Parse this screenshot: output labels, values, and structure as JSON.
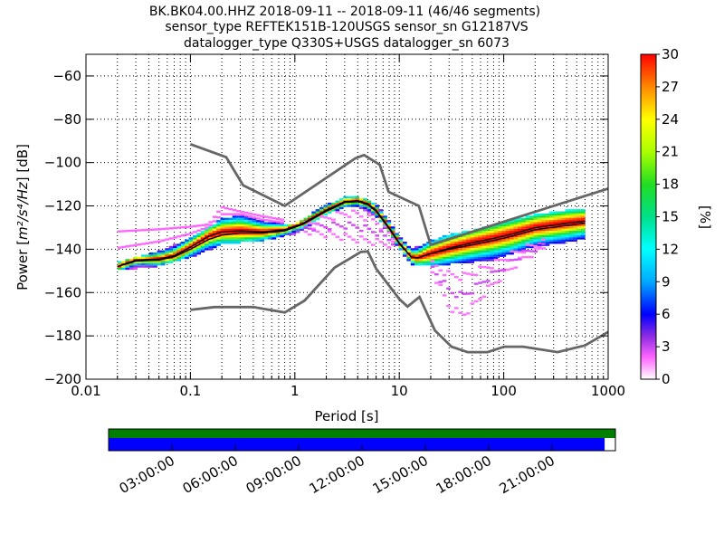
{
  "chart_data": {
    "type": "heatmap",
    "title_lines": [
      "BK.BK04.00.HHZ   2018-09-11 -- 2018-09-11  (46/46 segments)",
      "sensor_type REFTEK151B-120USGS sensor_sn G12187VS",
      "datalogger_type Q330S+USGS datalogger_sn 6073"
    ],
    "xlabel": "Period [s]",
    "ylabel_prefix": "Power [",
    "ylabel_units": "m²/s⁴/Hz",
    "ylabel_suffix": "] [dB]",
    "xscale": "log",
    "xlim": [
      0.01,
      1000
    ],
    "ylim": [
      -200,
      -50
    ],
    "xticks": [
      {
        "value": 0.01,
        "label": "0.01"
      },
      {
        "value": 0.1,
        "label": "0.1"
      },
      {
        "value": 1,
        "label": "1"
      },
      {
        "value": 10,
        "label": "10"
      },
      {
        "value": 100,
        "label": "100"
      },
      {
        "value": 1000,
        "label": "1000"
      }
    ],
    "yticks": [
      {
        "value": -60,
        "label": "−60"
      },
      {
        "value": -80,
        "label": "−80"
      },
      {
        "value": -100,
        "label": "−100"
      },
      {
        "value": -120,
        "label": "−120"
      },
      {
        "value": -140,
        "label": "−140"
      },
      {
        "value": -160,
        "label": "−160"
      },
      {
        "value": -180,
        "label": "−180"
      },
      {
        "value": -200,
        "label": "−200"
      }
    ],
    "grid": "dotted",
    "colorbar": {
      "label": "[%]",
      "range": [
        0,
        30
      ],
      "ticks": [
        {
          "value": 0,
          "label": "0"
        },
        {
          "value": 3,
          "label": "3"
        },
        {
          "value": 6,
          "label": "6"
        },
        {
          "value": 9,
          "label": "9"
        },
        {
          "value": 12,
          "label": "12"
        },
        {
          "value": 15,
          "label": "15"
        },
        {
          "value": 18,
          "label": "18"
        },
        {
          "value": 21,
          "label": "21"
        },
        {
          "value": 24,
          "label": "24"
        },
        {
          "value": 27,
          "label": "27"
        },
        {
          "value": 30,
          "label": "30"
        }
      ]
    },
    "new_high_noise_model": [
      [
        0.1,
        -91.5
      ],
      [
        0.22,
        -97.5
      ],
      [
        0.32,
        -110.5
      ],
      [
        0.8,
        -120
      ],
      [
        3.8,
        -98
      ],
      [
        4.6,
        -96.5
      ],
      [
        6.5,
        -101
      ],
      [
        7.9,
        -113.5
      ],
      [
        15.4,
        -120
      ],
      [
        20,
        -138
      ],
      [
        1000,
        -112
      ]
    ],
    "new_low_noise_model": [
      [
        0.1,
        -168
      ],
      [
        0.17,
        -166.7
      ],
      [
        0.4,
        -166.7
      ],
      [
        0.8,
        -169.2
      ],
      [
        1.24,
        -163.7
      ],
      [
        2.4,
        -148.5
      ],
      [
        4.3,
        -141.2
      ],
      [
        5,
        -141
      ],
      [
        6,
        -149
      ],
      [
        10,
        -163
      ],
      [
        12,
        -166.5
      ],
      [
        15.6,
        -162
      ],
      [
        21.9,
        -177.5
      ],
      [
        31.6,
        -185
      ],
      [
        45,
        -187.5
      ],
      [
        70,
        -187.5
      ],
      [
        101,
        -185
      ],
      [
        154,
        -185
      ],
      [
        328,
        -187.5
      ],
      [
        600,
        -184.4
      ],
      [
        1000,
        -178.2
      ]
    ],
    "mode_line": [
      [
        0.02,
        -148
      ],
      [
        0.03,
        -145
      ],
      [
        0.05,
        -144.5
      ],
      [
        0.07,
        -143
      ],
      [
        0.1,
        -139
      ],
      [
        0.15,
        -134
      ],
      [
        0.2,
        -132
      ],
      [
        0.3,
        -131.5
      ],
      [
        0.5,
        -132
      ],
      [
        0.8,
        -131
      ],
      [
        1.2,
        -128
      ],
      [
        2,
        -122
      ],
      [
        3,
        -118
      ],
      [
        4,
        -117.5
      ],
      [
        5,
        -119
      ],
      [
        6,
        -122
      ],
      [
        8,
        -130
      ],
      [
        10,
        -137
      ],
      [
        13,
        -143.5
      ],
      [
        15,
        -144
      ],
      [
        20,
        -142
      ],
      [
        30,
        -139.5
      ],
      [
        50,
        -137
      ],
      [
        80,
        -135
      ],
      [
        120,
        -133
      ],
      [
        200,
        -130
      ],
      [
        400,
        -128
      ],
      [
        600,
        -127
      ]
    ],
    "mean_line": [
      [
        0.02,
        -148
      ],
      [
        0.03,
        -145.5
      ],
      [
        0.05,
        -145
      ],
      [
        0.07,
        -143.5
      ],
      [
        0.1,
        -140
      ],
      [
        0.15,
        -135.5
      ],
      [
        0.2,
        -133.5
      ],
      [
        0.3,
        -132.5
      ],
      [
        0.5,
        -132.5
      ],
      [
        0.8,
        -131.5
      ],
      [
        1.2,
        -128.5
      ],
      [
        2,
        -122.5
      ],
      [
        3,
        -118.5
      ],
      [
        4,
        -118
      ],
      [
        5,
        -119.5
      ],
      [
        6,
        -122.5
      ],
      [
        8,
        -130.5
      ],
      [
        10,
        -137.5
      ],
      [
        13,
        -143.5
      ],
      [
        15,
        -144
      ],
      [
        20,
        -142
      ],
      [
        30,
        -140
      ],
      [
        50,
        -138
      ],
      [
        80,
        -136
      ],
      [
        120,
        -134
      ],
      [
        200,
        -131
      ],
      [
        400,
        -129
      ],
      [
        600,
        -128
      ]
    ],
    "spread_min": [
      [
        0.02,
        -149
      ],
      [
        0.05,
        -147
      ],
      [
        0.1,
        -143
      ],
      [
        0.2,
        -137
      ],
      [
        0.3,
        -136
      ],
      [
        0.5,
        -135
      ],
      [
        0.8,
        -133
      ],
      [
        1,
        -132
      ],
      [
        2,
        -123.5
      ],
      [
        3,
        -119.5
      ],
      [
        4,
        -119.5
      ],
      [
        6,
        -124
      ],
      [
        8,
        -132
      ],
      [
        10,
        -139
      ],
      [
        13,
        -146
      ],
      [
        20,
        -147
      ],
      [
        30,
        -146
      ],
      [
        50,
        -145
      ],
      [
        80,
        -144
      ],
      [
        120,
        -141
      ],
      [
        200,
        -138
      ],
      [
        400,
        -136
      ],
      [
        600,
        -134
      ]
    ],
    "spread_max": [
      [
        0.02,
        -147
      ],
      [
        0.05,
        -142
      ],
      [
        0.1,
        -136
      ],
      [
        0.2,
        -127
      ],
      [
        0.3,
        -125
      ],
      [
        0.5,
        -128
      ],
      [
        0.8,
        -129
      ],
      [
        1,
        -129
      ],
      [
        2,
        -120.5
      ],
      [
        3,
        -117
      ],
      [
        4,
        -116.5
      ],
      [
        6,
        -120
      ],
      [
        8,
        -128
      ],
      [
        10,
        -135
      ],
      [
        13,
        -141
      ],
      [
        20,
        -137
      ],
      [
        30,
        -134
      ],
      [
        50,
        -132
      ],
      [
        80,
        -130
      ],
      [
        120,
        -127
      ],
      [
        200,
        -125
      ],
      [
        400,
        -123
      ],
      [
        600,
        -122
      ]
    ],
    "outlier_min": [
      [
        0.15,
        -138
      ],
      [
        0.2,
        -130
      ],
      [
        0.3,
        -128
      ],
      [
        10,
        -140
      ],
      [
        15,
        -146
      ],
      [
        20,
        -150
      ],
      [
        30,
        -168
      ],
      [
        40,
        -172
      ],
      [
        50,
        -168
      ],
      [
        70,
        -160
      ],
      [
        100,
        -153
      ],
      [
        150,
        -146
      ],
      [
        300,
        -138
      ],
      [
        600,
        -134
      ]
    ],
    "outlier_max": [
      [
        0.15,
        -128
      ],
      [
        0.2,
        -119
      ],
      [
        0.3,
        -122
      ],
      [
        10,
        -136
      ],
      [
        15,
        -141
      ],
      [
        20,
        -138
      ],
      [
        30,
        -136
      ],
      [
        50,
        -134
      ],
      [
        100,
        -129
      ],
      [
        200,
        -125
      ],
      [
        600,
        -122
      ]
    ]
  },
  "data_availability": {
    "time_ticks": [
      "03:00:00",
      "06:00:00",
      "09:00:00",
      "12:00:00",
      "15:00:00",
      "18:00:00",
      "21:00:00"
    ],
    "tick_hours": [
      3,
      6,
      9,
      12,
      15,
      18,
      21
    ],
    "span_hours": 24,
    "coverage_fraction": 0.9787,
    "colors": {
      "segments": "#008000",
      "data": "#0000ff"
    }
  }
}
